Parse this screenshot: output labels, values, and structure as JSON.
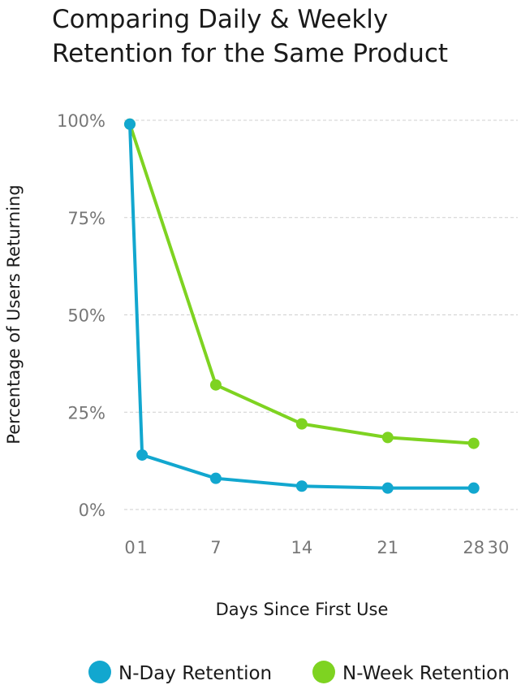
{
  "chart_data": {
    "type": "line",
    "title": [
      "Comparing Daily & Weekly",
      "Retention for the Same Product"
    ],
    "xlabel": "Days Since First Use",
    "ylabel": "Percentage of Users Returning",
    "xlim": [
      0,
      30
    ],
    "ylim": [
      0,
      100
    ],
    "x_ticks": [
      0,
      1,
      7,
      14,
      21,
      28,
      30
    ],
    "y_ticks": [
      {
        "value": 0,
        "label": "0%"
      },
      {
        "value": 25,
        "label": "25%"
      },
      {
        "value": 50,
        "label": "50%"
      },
      {
        "value": 75,
        "label": "75%"
      },
      {
        "value": 100,
        "label": "100%"
      }
    ],
    "grid": true,
    "legend_position": "bottom",
    "series": [
      {
        "name": "N-Day Retention",
        "color": "#12a7cf",
        "points": [
          {
            "x": 0,
            "y": 99
          },
          {
            "x": 1,
            "y": 14
          },
          {
            "x": 7,
            "y": 8
          },
          {
            "x": 14,
            "y": 6
          },
          {
            "x": 21,
            "y": 5.5
          },
          {
            "x": 28,
            "y": 5.5
          }
        ]
      },
      {
        "name": "N-Week Retention",
        "color": "#7ed321",
        "points": [
          {
            "x": 0,
            "y": 99
          },
          {
            "x": 7,
            "y": 32
          },
          {
            "x": 14,
            "y": 22
          },
          {
            "x": 21,
            "y": 18.5
          },
          {
            "x": 28,
            "y": 17
          }
        ]
      }
    ]
  }
}
